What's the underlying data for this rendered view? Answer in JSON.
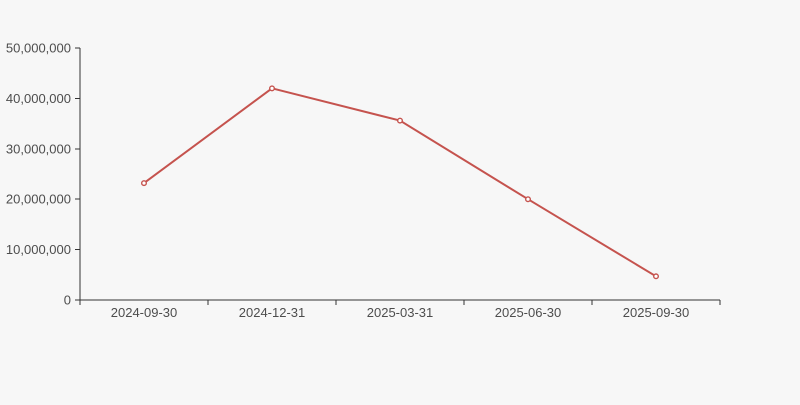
{
  "page": {
    "background": "#f7f7f7"
  },
  "chart": {
    "axis_color": "#333333",
    "label_color": "#4d4d4d",
    "line_color": "#c5534e",
    "marker_fill": "#ffffff",
    "line_width": 2,
    "marker_radius": 2.3
  },
  "chart_data": {
    "type": "line",
    "title": "",
    "xlabel": "",
    "ylabel": "",
    "categories": [
      "2024-09-30",
      "2024-12-31",
      "2025-03-31",
      "2025-06-30",
      "2025-09-30"
    ],
    "values": [
      23200000,
      42000000,
      35600000,
      20000000,
      4700000
    ],
    "ylim": [
      0,
      50000000
    ],
    "yticks": [
      {
        "value": 0,
        "label": "0"
      },
      {
        "value": 10000000,
        "label": "10,000,000"
      },
      {
        "value": 20000000,
        "label": "20,000,000"
      },
      {
        "value": 30000000,
        "label": "30,000,000"
      },
      {
        "value": 40000000,
        "label": "40,000,000"
      },
      {
        "value": 50000000,
        "label": "50,000,000"
      }
    ],
    "grid": false,
    "legend": "none",
    "marker": "open-circle"
  }
}
